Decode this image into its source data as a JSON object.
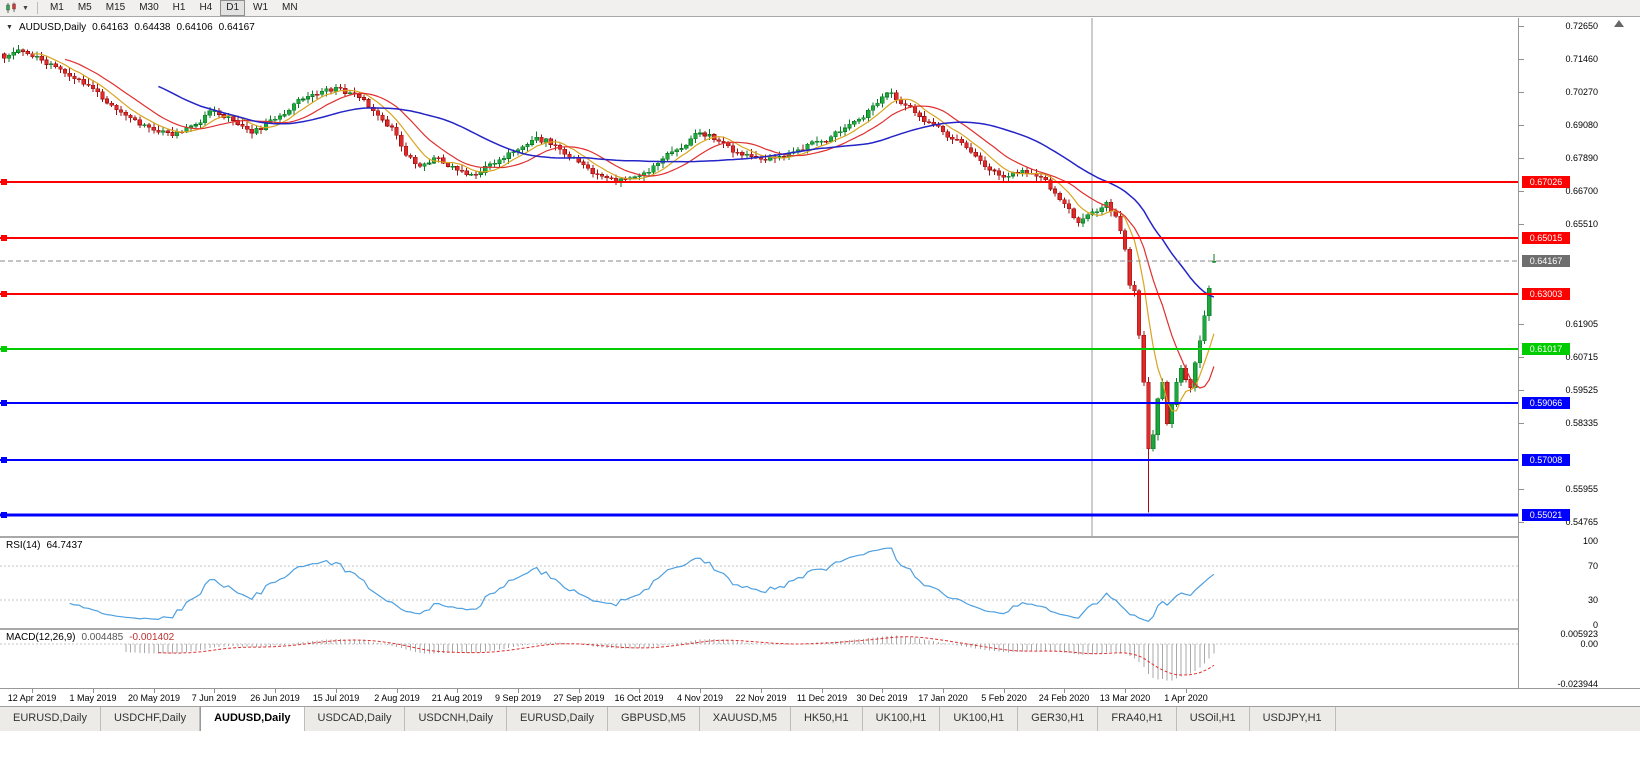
{
  "toolbar": {
    "timeframes": [
      {
        "label": "M1",
        "active": false
      },
      {
        "label": "M5",
        "active": false
      },
      {
        "label": "M15",
        "active": false
      },
      {
        "label": "M30",
        "active": false
      },
      {
        "label": "H1",
        "active": false
      },
      {
        "label": "H4",
        "active": false
      },
      {
        "label": "D1",
        "active": true
      },
      {
        "label": "W1",
        "active": false
      },
      {
        "label": "MN",
        "active": false
      }
    ]
  },
  "chart_data": {
    "type": "candlestick",
    "symbol": "AUDUSD",
    "period": "Daily",
    "title": {
      "symbol": "AUDUSD,Daily",
      "open": "0.64163",
      "high": "0.64438",
      "low": "0.64106",
      "close": "0.64167"
    },
    "ohlc_display": {
      "open": 0.64163,
      "high": 0.64438,
      "low": 0.64106,
      "close": 0.64167
    },
    "num_candles": 260,
    "random_seed": 11,
    "noise_amplitude": 0.0022,
    "price_range": {
      "top": 0.7295,
      "bottom": 0.5425
    },
    "price_anchors": [
      [
        0,
        0.715
      ],
      [
        3,
        0.718
      ],
      [
        6,
        0.7155
      ],
      [
        10,
        0.713
      ],
      [
        14,
        0.7085
      ],
      [
        19,
        0.704
      ],
      [
        23,
        0.698
      ],
      [
        27,
        0.6935
      ],
      [
        32,
        0.689
      ],
      [
        36,
        0.687
      ],
      [
        40,
        0.6905
      ],
      [
        45,
        0.696
      ],
      [
        49,
        0.6925
      ],
      [
        53,
        0.688
      ],
      [
        58,
        0.693
      ],
      [
        62,
        0.6985
      ],
      [
        66,
        0.702
      ],
      [
        71,
        0.7045
      ],
      [
        75,
        0.702
      ],
      [
        79,
        0.696
      ],
      [
        83,
        0.69
      ],
      [
        86,
        0.68
      ],
      [
        89,
        0.676
      ],
      [
        93,
        0.679
      ],
      [
        97,
        0.6745
      ],
      [
        101,
        0.673
      ],
      [
        105,
        0.677
      ],
      [
        110,
        0.682
      ],
      [
        114,
        0.6865
      ],
      [
        118,
        0.6835
      ],
      [
        123,
        0.6775
      ],
      [
        127,
        0.673
      ],
      [
        131,
        0.67
      ],
      [
        136,
        0.6725
      ],
      [
        140,
        0.677
      ],
      [
        144,
        0.682
      ],
      [
        149,
        0.688
      ],
      [
        153,
        0.685
      ],
      [
        157,
        0.681
      ],
      [
        162,
        0.6785
      ],
      [
        166,
        0.6795
      ],
      [
        170,
        0.682
      ],
      [
        175,
        0.685
      ],
      [
        179,
        0.6885
      ],
      [
        183,
        0.693
      ],
      [
        188,
        0.701
      ],
      [
        190,
        0.7025
      ],
      [
        193,
        0.698
      ],
      [
        197,
        0.692
      ],
      [
        201,
        0.6885
      ],
      [
        205,
        0.6845
      ],
      [
        209,
        0.678
      ],
      [
        214,
        0.672
      ],
      [
        218,
        0.6745
      ],
      [
        222,
        0.672
      ],
      [
        227,
        0.6625
      ],
      [
        230,
        0.6555
      ],
      [
        233,
        0.6595
      ],
      [
        236,
        0.663
      ],
      [
        238,
        0.658
      ],
      [
        240,
        0.646
      ],
      [
        241,
        0.633
      ],
      [
        242,
        0.631
      ],
      [
        243,
        0.615
      ],
      [
        244,
        0.598
      ],
      [
        245,
        0.574
      ],
      [
        246,
        0.579
      ],
      [
        247,
        0.592
      ],
      [
        248,
        0.598
      ],
      [
        249,
        0.583
      ],
      [
        250,
        0.59
      ],
      [
        251,
        0.598
      ],
      [
        252,
        0.603
      ],
      [
        253,
        0.599
      ],
      [
        254,
        0.596
      ],
      [
        255,
        0.605
      ],
      [
        256,
        0.613
      ],
      [
        257,
        0.622
      ],
      [
        258,
        0.632
      ],
      [
        259,
        0.6417
      ]
    ],
    "special_low": {
      "index": 245,
      "price": 0.551
    },
    "candle_colors": {
      "up": "#1CA83A",
      "down": "#E02A2A",
      "up_border": "#0B7A26",
      "down_border": "#9E1212"
    },
    "moving_averages": [
      {
        "period": 7,
        "color": "#D9A520",
        "width": 1.2
      },
      {
        "period": 14,
        "color": "#E03030",
        "width": 1.2
      },
      {
        "period": 34,
        "color": "#2424C8",
        "width": 1.5
      }
    ],
    "levels": [
      {
        "label": "0.67026",
        "price": 0.67026,
        "color": "#FF0000",
        "width": 2
      },
      {
        "label": "0.65015",
        "price": 0.65015,
        "color": "#FF0000",
        "width": 2
      },
      {
        "label": "0.63003",
        "price": 0.63003,
        "color": "#FF0000",
        "width": 2
      },
      {
        "label": "0.61017",
        "price": 0.61017,
        "color": "#00CC00",
        "width": 2
      },
      {
        "label": "0.59066",
        "price": 0.59066,
        "color": "#0000FF",
        "width": 2
      },
      {
        "label": "0.57008",
        "price": 0.57008,
        "color": "#0000FF",
        "width": 2
      },
      {
        "label": "0.55021",
        "price": 0.55021,
        "color": "#0000FF",
        "width": 3
      }
    ],
    "current_price": {
      "label": "0.64167",
      "price": 0.64167,
      "line_color": "#8A8A8A",
      "label_bg": "#6E6E6E"
    },
    "vertical_line": {
      "index": 233,
      "color": "#9A9A9A"
    },
    "y_ticks": [
      {
        "label": "0.72650",
        "price": 0.7265
      },
      {
        "label": "0.71460",
        "price": 0.7146
      },
      {
        "label": "0.70270",
        "price": 0.7027
      },
      {
        "label": "0.69080",
        "price": 0.6908
      },
      {
        "label": "0.67890",
        "price": 0.6789
      },
      {
        "label": "0.66700",
        "price": 0.667
      },
      {
        "label": "0.65510",
        "price": 0.6551
      },
      {
        "label": "0.61905",
        "price": 0.61905
      },
      {
        "label": "0.60715",
        "price": 0.60715
      },
      {
        "label": "0.59525",
        "price": 0.59525
      },
      {
        "label": "0.58335",
        "price": 0.58335
      },
      {
        "label": "0.55955",
        "price": 0.55955
      },
      {
        "label": "0.54765",
        "price": 0.54765
      }
    ],
    "x_ticks": [
      {
        "label": "12 Apr 2019",
        "index": 6
      },
      {
        "label": "1 May 2019",
        "index": 19
      },
      {
        "label": "20 May 2019",
        "index": 32
      },
      {
        "label": "7 Jun 2019",
        "index": 45
      },
      {
        "label": "26 Jun 2019",
        "index": 58
      },
      {
        "label": "15 Jul 2019",
        "index": 71
      },
      {
        "label": "2 Aug 2019",
        "index": 84
      },
      {
        "label": "21 Aug 2019",
        "index": 97
      },
      {
        "label": "9 Sep 2019",
        "index": 110
      },
      {
        "label": "27 Sep 2019",
        "index": 123
      },
      {
        "label": "16 Oct 2019",
        "index": 136
      },
      {
        "label": "4 Nov 2019",
        "index": 149
      },
      {
        "label": "22 Nov 2019",
        "index": 162
      },
      {
        "label": "11 Dec 2019",
        "index": 175
      },
      {
        "label": "30 Dec 2019",
        "index": 188
      },
      {
        "label": "17 Jan 2020",
        "index": 201
      },
      {
        "label": "5 Feb 2020",
        "index": 214
      },
      {
        "label": "24 Feb 2020",
        "index": 227
      },
      {
        "label": "13 Mar 2020",
        "index": 240
      },
      {
        "label": "1 Apr 2020",
        "index": 253
      }
    ],
    "indicators": {
      "rsi": {
        "label": "RSI(14)",
        "value_str": "64.7437",
        "value": 64.7437,
        "line_color": "#4D9FE0",
        "levels": [
          100,
          70,
          30,
          0
        ],
        "dotted_levels": [
          70,
          30
        ],
        "range": [
          0,
          100
        ]
      },
      "macd": {
        "label": "MACD(12,26,9)",
        "value_main_str": "0.004485",
        "value_signal_str": "-0.001402",
        "value_main": 0.004485,
        "value_signal": -0.001402,
        "max": 0.005923,
        "min": -0.023944,
        "histogram_color": "#A8A8A8",
        "signal_color": "#E03030",
        "axis_labels": [
          {
            "label": "0.005923",
            "value": 0.005923
          },
          {
            "label": "0.00",
            "value": 0
          },
          {
            "label": "-0.023944",
            "value": -0.023944
          }
        ]
      }
    }
  },
  "bottom_tabs": [
    {
      "label": "EURUSD,Daily",
      "active": false
    },
    {
      "label": "USDCHF,Daily",
      "active": false
    },
    {
      "label": "AUDUSD,Daily",
      "active": true
    },
    {
      "label": "USDCAD,Daily",
      "active": false
    },
    {
      "label": "USDCNH,Daily",
      "active": false
    },
    {
      "label": "EURUSD,Daily",
      "active": false
    },
    {
      "label": "GBPUSD,M5",
      "active": false
    },
    {
      "label": "XAUUSD,M5",
      "active": false
    },
    {
      "label": "HK50,H1",
      "active": false
    },
    {
      "label": "UK100,H1",
      "active": false
    },
    {
      "label": "UK100,H1",
      "active": false
    },
    {
      "label": "GER30,H1",
      "active": false
    },
    {
      "label": "FRA40,H1",
      "active": false
    },
    {
      "label": "USOil,H1",
      "active": false
    },
    {
      "label": "USDJPY,H1",
      "active": false
    }
  ]
}
